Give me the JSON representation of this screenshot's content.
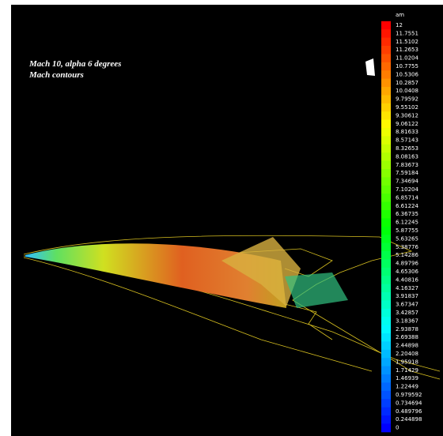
{
  "annotation": {
    "lines": [
      "Mach 10, alpha 6 degrees",
      "Mach contours"
    ]
  },
  "colorbar": {
    "label": "am",
    "ticks": [
      12,
      11.7551,
      11.5102,
      11.2653,
      11.0204,
      10.7755,
      10.5306,
      10.2857,
      10.0408,
      9.79592,
      9.55102,
      9.30612,
      9.06122,
      8.81633,
      8.57143,
      8.32653,
      8.08163,
      7.83673,
      7.59184,
      7.34694,
      7.10204,
      6.85714,
      6.61224,
      6.36735,
      6.12245,
      5.87755,
      5.63265,
      5.38776,
      5.14286,
      4.89796,
      4.65306,
      4.40816,
      4.16327,
      3.91837,
      3.67347,
      3.42857,
      3.18367,
      2.93878,
      2.69388,
      2.44898,
      2.20408,
      1.95918,
      1.71429,
      1.46939,
      1.22449,
      0.979592,
      0.734694,
      0.489796,
      0.244898,
      0
    ]
  }
}
